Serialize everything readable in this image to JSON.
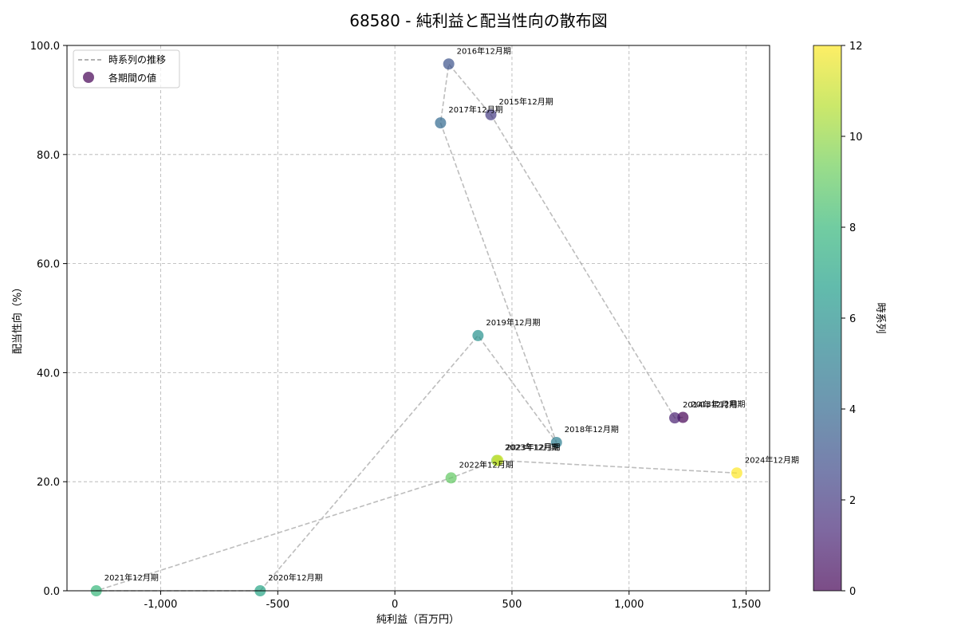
{
  "chart_data": {
    "type": "scatter",
    "title": "68580 - 純利益と配当性向の散布図",
    "xlabel": "純利益（百万円）",
    "ylabel": "配当性向（%）",
    "xlim": [
      -1400,
      1600
    ],
    "ylim": [
      0,
      100
    ],
    "x_ticks": [
      -1000,
      -500,
      0,
      500,
      1000,
      1500
    ],
    "x_tick_labels": [
      "-1,000",
      "-500",
      "0",
      "500",
      "1,000",
      "1,500"
    ],
    "y_ticks": [
      0,
      20,
      40,
      60,
      80,
      100
    ],
    "y_tick_labels": [
      "0.0",
      "20.0",
      "40.0",
      "60.0",
      "80.0",
      "100.0"
    ],
    "grid": true,
    "legend": {
      "placement": "top-left",
      "entries": [
        {
          "label": "時系列の推移",
          "kind": "line"
        },
        {
          "label": "各期間の値",
          "kind": "marker"
        }
      ]
    },
    "colorbar": {
      "label": "時系列",
      "min": 0,
      "max": 12,
      "ticks": [
        0,
        2,
        4,
        6,
        8,
        10,
        12
      ],
      "tick_labels": [
        "0",
        "2",
        "4",
        "6",
        "8",
        "10",
        "12"
      ]
    },
    "points": [
      {
        "label": "2013年12月期",
        "x": 1230,
        "y": 31.8,
        "t": 0
      },
      {
        "label": "2014年12月期",
        "x": 1195,
        "y": 31.7,
        "t": 1
      },
      {
        "label": "2015年12月期",
        "x": 410,
        "y": 87.3,
        "t": 2
      },
      {
        "label": "2016年12月期",
        "x": 230,
        "y": 96.6,
        "t": 3
      },
      {
        "label": "2017年12月期",
        "x": 195,
        "y": 85.8,
        "t": 4
      },
      {
        "label": "2018年12月期",
        "x": 690,
        "y": 27.2,
        "t": 5
      },
      {
        "label": "2019年12月期",
        "x": 355,
        "y": 46.8,
        "t": 6
      },
      {
        "label": "2020年12月期",
        "x": -575,
        "y": 0.0,
        "t": 7
      },
      {
        "label": "2021年12月期",
        "x": -1275,
        "y": 0.0,
        "t": 8
      },
      {
        "label": "2022年12月期",
        "x": 240,
        "y": 20.7,
        "t": 9
      },
      {
        "label": "2023年12月期",
        "x": 435,
        "y": 23.9,
        "t": 10
      },
      {
        "label": "2023年12月期",
        "x": 440,
        "y": 23.9,
        "t": 11
      },
      {
        "label": "2024年12月期",
        "x": 1460,
        "y": 21.6,
        "t": 12
      }
    ],
    "colors": {
      "viridis": [
        "#440154",
        "#482878",
        "#3e4989",
        "#31688e",
        "#26828e",
        "#1f9e89",
        "#35b779",
        "#6ece58",
        "#b5de2b",
        "#fde725"
      ],
      "trend_line": "#999999",
      "grid": "#b0b0b0",
      "marker_alpha": 0.7
    }
  }
}
